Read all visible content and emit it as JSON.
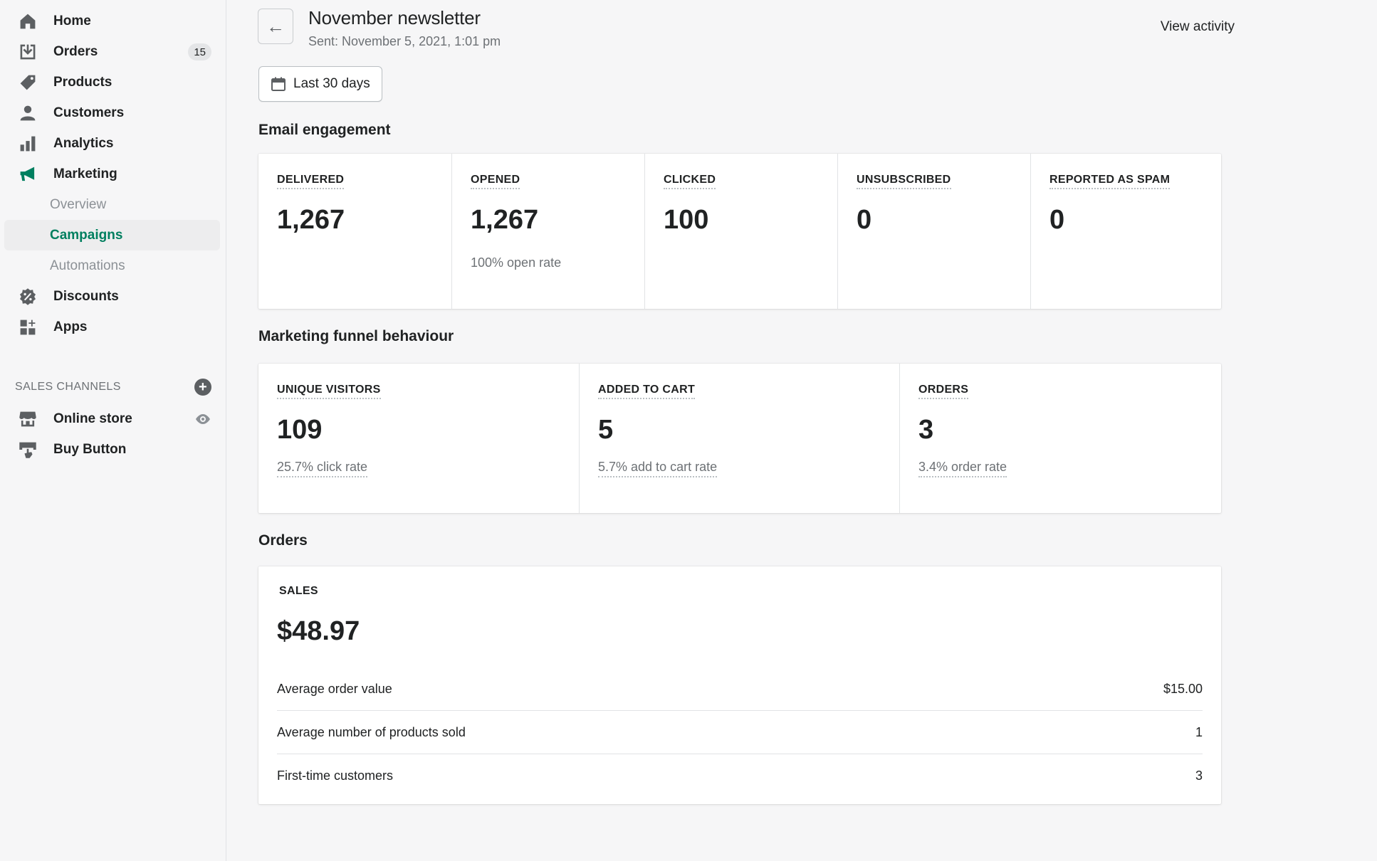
{
  "sidebar": {
    "nav": [
      {
        "label": "Home",
        "icon": "home-icon"
      },
      {
        "label": "Orders",
        "icon": "orders-icon",
        "badge": "15"
      },
      {
        "label": "Products",
        "icon": "tag-icon"
      },
      {
        "label": "Customers",
        "icon": "person-icon"
      },
      {
        "label": "Analytics",
        "icon": "bar-chart-icon"
      },
      {
        "label": "Marketing",
        "icon": "megaphone-icon"
      }
    ],
    "marketing_sub": [
      {
        "label": "Overview"
      },
      {
        "label": "Campaigns",
        "active": true
      },
      {
        "label": "Automations"
      }
    ],
    "nav_after": [
      {
        "label": "Discounts",
        "icon": "discount-icon"
      },
      {
        "label": "Apps",
        "icon": "apps-icon"
      }
    ],
    "sales_channels_heading": "SALES CHANNELS",
    "channels": [
      {
        "label": "Online store",
        "icon": "store-icon"
      },
      {
        "label": "Buy Button",
        "icon": "buy-button-icon"
      }
    ]
  },
  "header": {
    "title": "November newsletter",
    "subtitle": "Sent: November 5, 2021, 1:01 pm",
    "view_activity": "View activity",
    "date_range": "Last 30 days"
  },
  "email_engagement": {
    "title": "Email engagement",
    "metrics": [
      {
        "label": "DELIVERED",
        "value": "1,267",
        "note": ""
      },
      {
        "label": "OPENED",
        "value": "1,267",
        "note": "100% open rate"
      },
      {
        "label": "CLICKED",
        "value": "100",
        "note": ""
      },
      {
        "label": "UNSUBSCRIBED",
        "value": "0",
        "note": ""
      },
      {
        "label": "REPORTED AS SPAM",
        "value": "0",
        "note": ""
      }
    ]
  },
  "funnel": {
    "title": "Marketing funnel behaviour",
    "metrics": [
      {
        "label": "UNIQUE VISITORS",
        "value": "109",
        "note": "25.7% click rate"
      },
      {
        "label": "ADDED TO CART",
        "value": "5",
        "note": "5.7% add to cart rate"
      },
      {
        "label": "ORDERS",
        "value": "3",
        "note": "3.4% order rate"
      }
    ]
  },
  "orders": {
    "title": "Orders",
    "sales_label": "SALES",
    "sales_value": "$48.97",
    "rows": [
      {
        "label": "Average order value",
        "value": "$15.00"
      },
      {
        "label": "Average number of products sold",
        "value": "1"
      },
      {
        "label": "First-time customers",
        "value": "3"
      }
    ]
  },
  "colors": {
    "accent": "#007f5f",
    "background": "#f6f6f7",
    "card": "#ffffff",
    "text": "#202223",
    "muted": "#6d7175"
  }
}
